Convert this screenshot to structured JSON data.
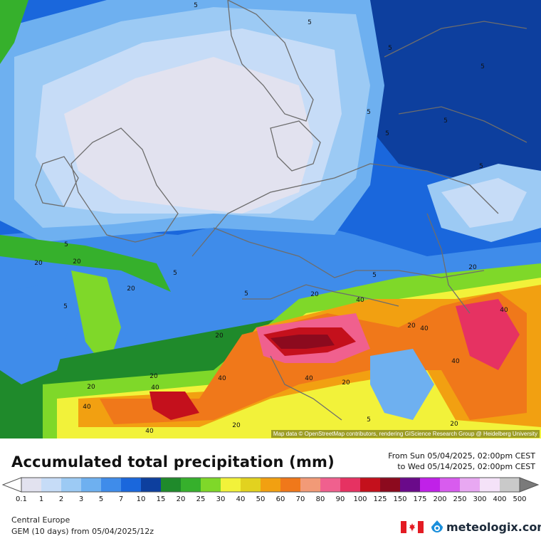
{
  "map": {
    "attribution": "Map data © OpenStreetMap contributors, rendering GIScience Research Group @ Heidelberg University",
    "contour_labels": [
      "5",
      "20",
      "40"
    ]
  },
  "legend": {
    "title": "Accumulated total precipitation (mm)",
    "period_from": "From Sun 05/04/2025, 02:00pm CEST",
    "period_to": "to Wed 05/14/2025, 02:00pm CEST",
    "ticks": [
      "0.1",
      "1",
      "2",
      "3",
      "5",
      "7",
      "10",
      "15",
      "20",
      "25",
      "30",
      "40",
      "50",
      "60",
      "70",
      "80",
      "90",
      "100",
      "125",
      "150",
      "175",
      "200",
      "250",
      "300",
      "400",
      "500"
    ],
    "colors": [
      "#e2e2ef",
      "#c6dcf7",
      "#9ccaf4",
      "#6eb0f0",
      "#3f8cea",
      "#1a67dc",
      "#0d3f9e",
      "#1f8a2b",
      "#36b02c",
      "#7fd829",
      "#f2f23a",
      "#e2d21f",
      "#f2a011",
      "#f0781a",
      "#f29a77",
      "#f0608e",
      "#e63262",
      "#c4101c",
      "#8c0a1e",
      "#6a0a8a",
      "#c021e8",
      "#d85cee",
      "#e8a8f2",
      "#f4e2f8",
      "#c9c9c9"
    ],
    "under_color": "#ffffff",
    "over_color": "#7a7a7a"
  },
  "footer": {
    "region": "Central Europe",
    "model": "GEM (10 days) from  05/04/2025/12z",
    "brand": "meteologix.com",
    "flag_icon": "canada-flag-icon",
    "brand_icon": "meteologix-logo-icon"
  }
}
